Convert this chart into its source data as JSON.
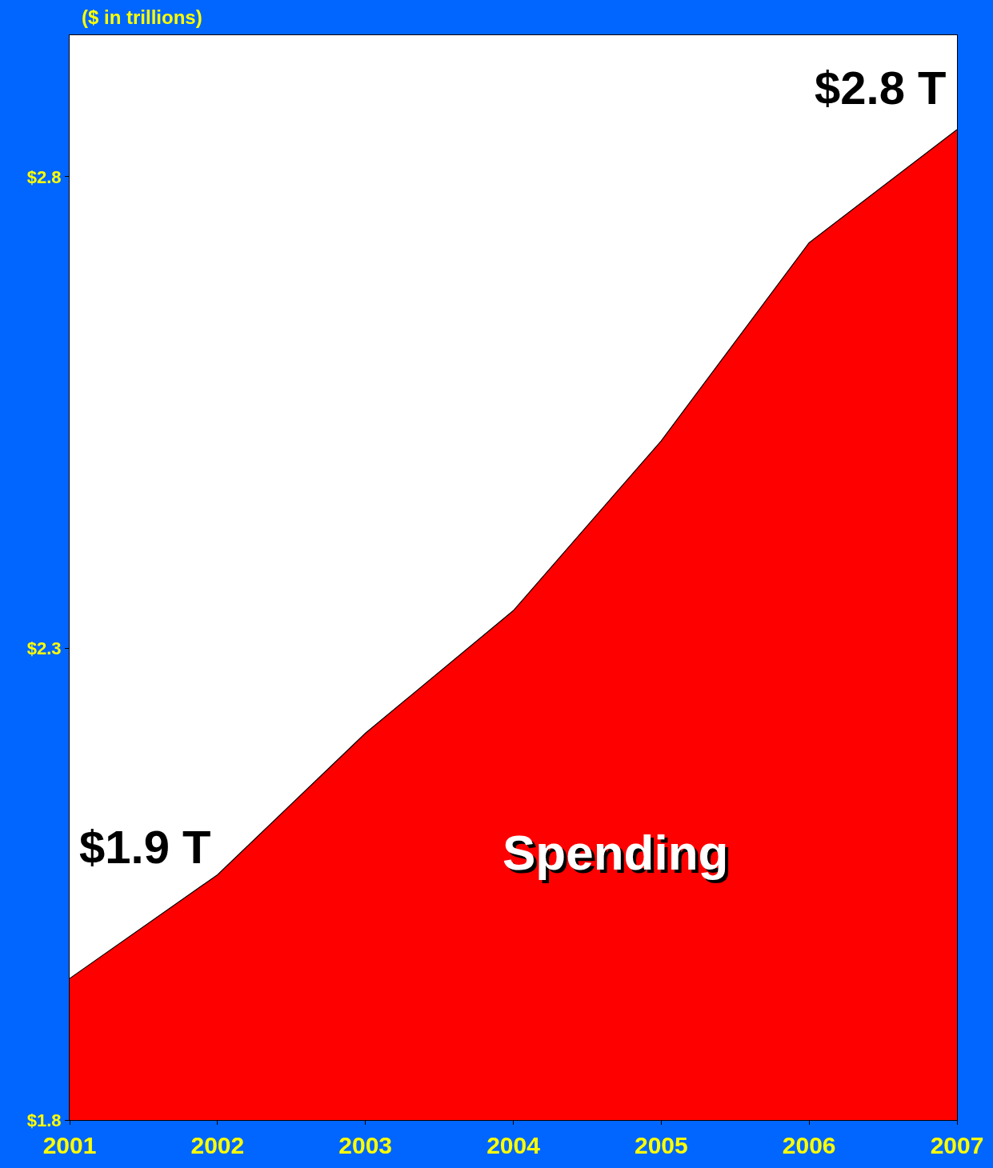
{
  "chart_data": {
    "type": "area",
    "ylabel": "($ in trillions)",
    "x": [
      2001,
      2002,
      2003,
      2004,
      2005,
      2006,
      2007
    ],
    "series": [
      {
        "name": "Spending",
        "color": "#ff0000",
        "values": [
          1.95,
          2.06,
          2.21,
          2.34,
          2.52,
          2.73,
          2.85
        ]
      }
    ],
    "xlim": [
      2001,
      2007
    ],
    "xticks": [
      2001,
      2002,
      2003,
      2004,
      2005,
      2006,
      2007
    ],
    "ylim": [
      1.8,
      2.95
    ],
    "yticks": [
      {
        "value": 1.8,
        "label": "$1.8"
      },
      {
        "value": 2.3,
        "label": "$2.3"
      },
      {
        "value": 2.8,
        "label": "$2.8"
      }
    ],
    "annotations": [
      {
        "text": "$1.9 T",
        "x": 2001,
        "y": 1.95
      },
      {
        "text": "$2.8 T",
        "x": 2007,
        "y": 2.85
      }
    ],
    "legend": false
  }
}
